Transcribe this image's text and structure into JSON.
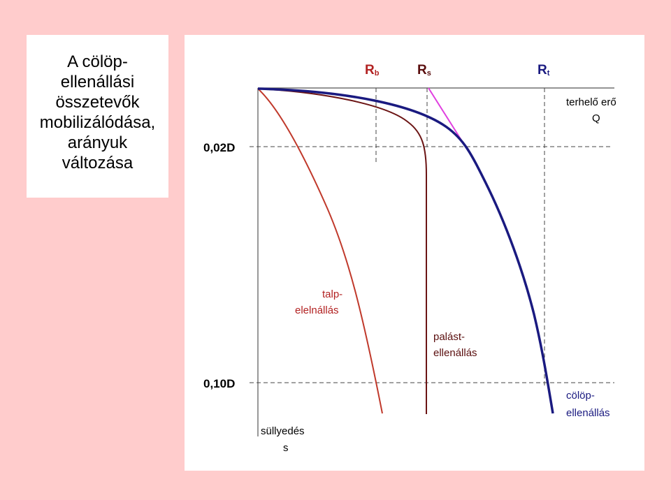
{
  "title": "A cölöp-\nellenállási\nösszetevők\nmobilizálódása,\narányuk\nváltozása",
  "axis_labels": {
    "rb_main": "R",
    "rb_sub": "b",
    "rs_main": "R",
    "rs_sub": "s",
    "rt_main": "R",
    "rt_sub": "t",
    "load_line1": "terhelő erő",
    "load_line2": "Q",
    "settlement_line1": "süllyedés",
    "settlement_line2": "s",
    "level_002": "0,02D",
    "level_010": "0,10D"
  },
  "curve_labels": {
    "base_line1": "talp-",
    "base_line2": "elelnállás",
    "shaft_line1": "palást-",
    "shaft_line2": "ellenállás",
    "pile_line1": "cölöp-",
    "pile_line2": "ellenállás"
  },
  "colors": {
    "page_background": "#ffcccc",
    "base_curve": "#c0392b",
    "shaft_curve": "#6b1414",
    "pile_curve": "#1a1a80",
    "tangent_line": "#e040e0",
    "label_red": "#b22222",
    "label_dark": "#5a0e0e",
    "label_navy": "#1a1a80"
  }
}
